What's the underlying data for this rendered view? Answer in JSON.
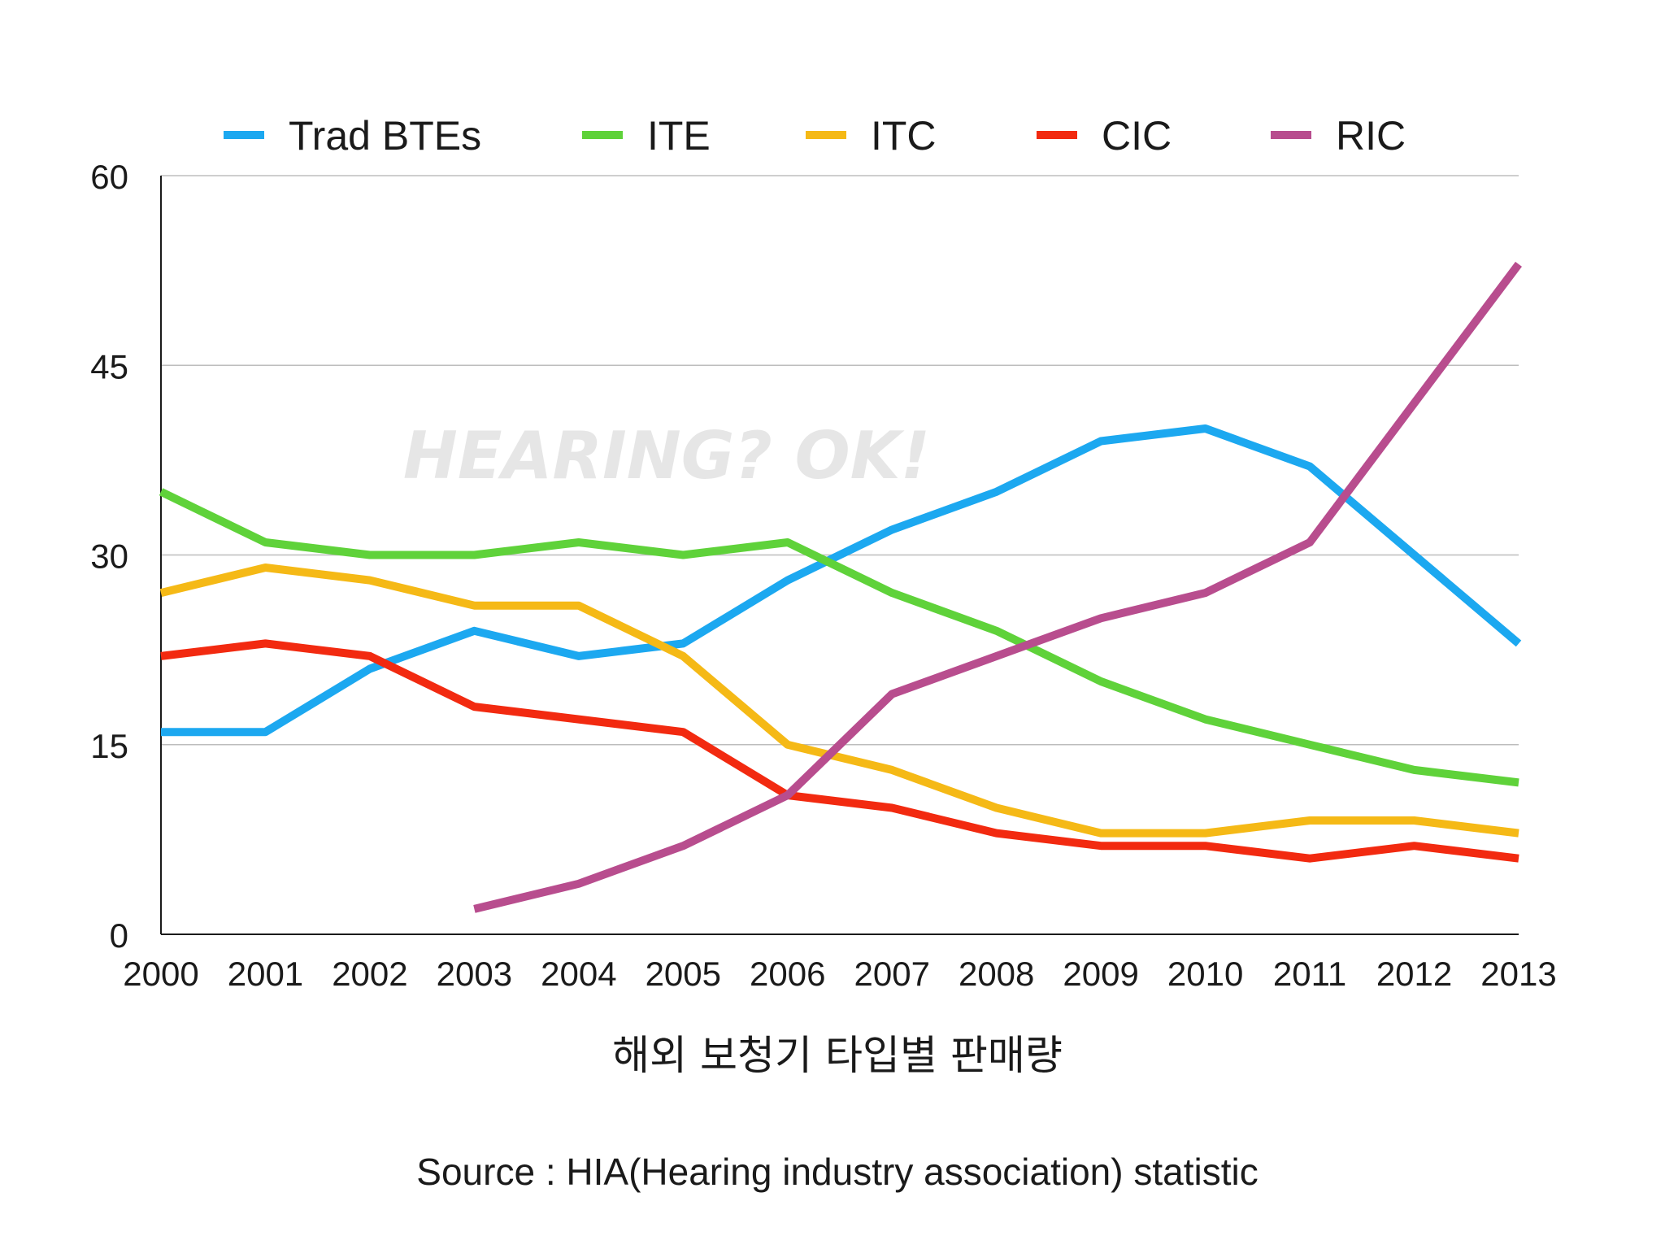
{
  "chart_data": {
    "type": "line",
    "title": "",
    "xlabel": "해외 보청기 타입별 판매량",
    "ylabel": "",
    "ylim": [
      0,
      60
    ],
    "yticks": [
      0,
      15,
      30,
      45,
      60
    ],
    "grid": true,
    "legend_position": "top",
    "categories": [
      "2000",
      "2001",
      "2002",
      "2003",
      "2004",
      "2005",
      "2006",
      "2007",
      "2008",
      "2009",
      "2010",
      "2011",
      "2012",
      "2013"
    ],
    "series": [
      {
        "name": "Trad BTEs",
        "color": "#1ca8f0",
        "values": [
          16,
          16,
          21,
          24,
          22,
          23,
          28,
          32,
          35,
          39,
          40,
          37,
          30,
          23
        ]
      },
      {
        "name": "ITE",
        "color": "#5fd23a",
        "values": [
          35,
          31,
          30,
          30,
          31,
          30,
          31,
          27,
          24,
          20,
          17,
          15,
          13,
          12
        ]
      },
      {
        "name": "ITC",
        "color": "#f5b916",
        "values": [
          27,
          29,
          28,
          26,
          26,
          22,
          15,
          13,
          10,
          8,
          8,
          9,
          9,
          8
        ]
      },
      {
        "name": "CIC",
        "color": "#f22a10",
        "values": [
          22,
          23,
          22,
          18,
          17,
          16,
          11,
          10,
          8,
          7,
          7,
          6,
          7,
          6
        ]
      },
      {
        "name": "RIC",
        "color": "#b84d8e",
        "values": [
          null,
          null,
          null,
          2,
          4,
          7,
          11,
          19,
          22,
          25,
          27,
          31,
          42,
          53
        ]
      }
    ]
  },
  "watermark": "HEARING? OK!",
  "source": "Source : HIA(Hearing industry association) statistic"
}
